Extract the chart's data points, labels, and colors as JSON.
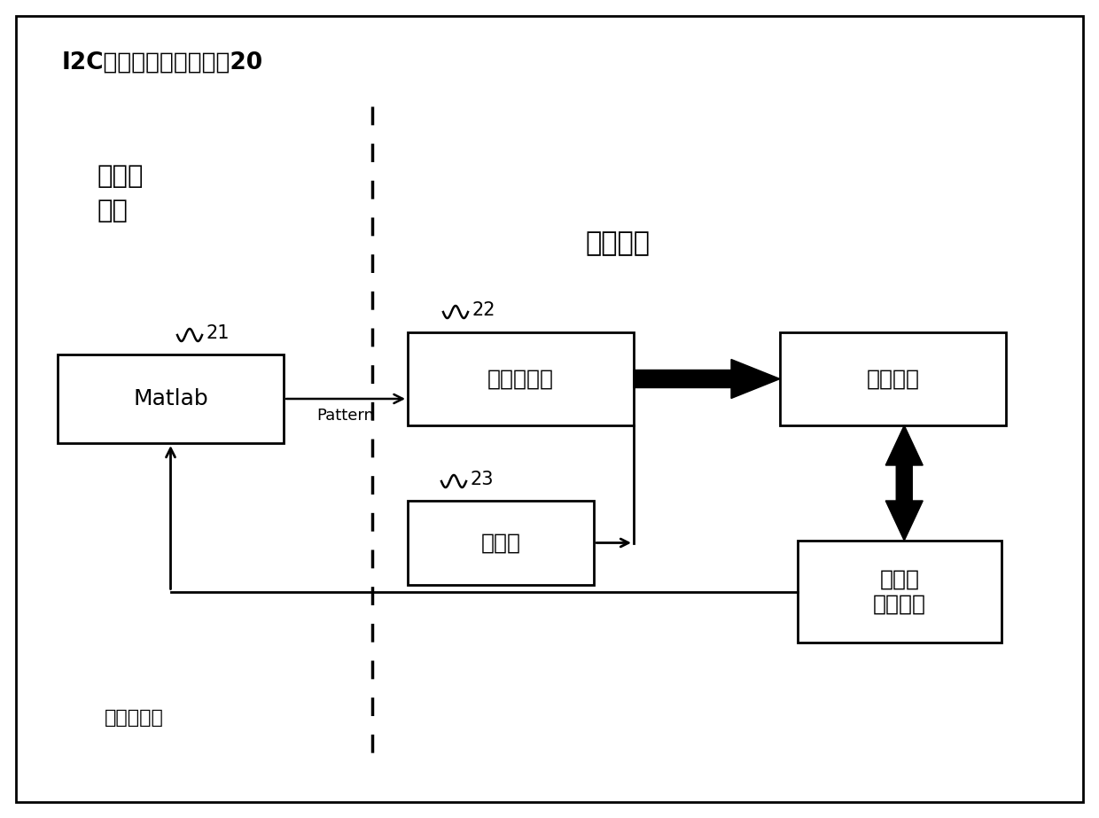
{
  "title": "I2C总线兼容性测试系统20",
  "label_computer": "计算机\n电脑",
  "label_testplatform": "测试平台",
  "label_matlab": "Matlab",
  "label_signal_gen": "信号发生器",
  "label_oscilloscope": "示波器",
  "label_dut": "被测设备",
  "label_mcu": "单片机\n（辅助）",
  "label_pattern": "Pattern",
  "label_readback": "读回写入值",
  "num_matlab": "21",
  "num_signal": "22",
  "num_osc": "23",
  "bg_color": "#ffffff",
  "box_color": "#000000",
  "text_color": "#000000"
}
